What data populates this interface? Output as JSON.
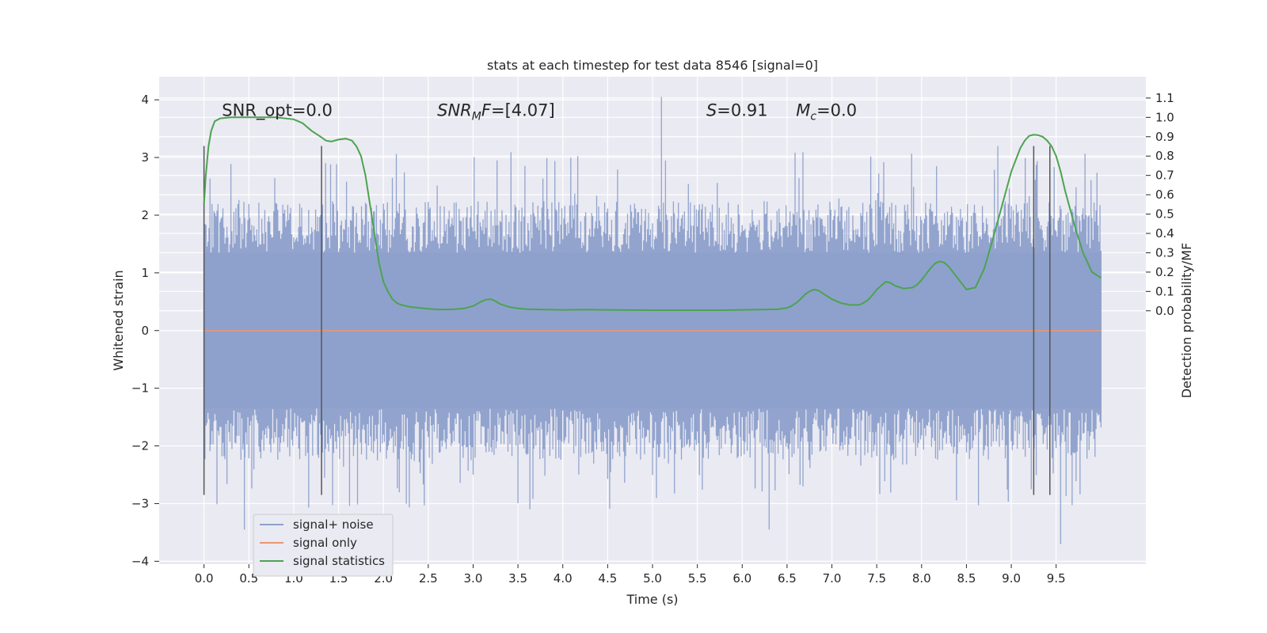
{
  "chart_data": {
    "type": "line",
    "title": "stats at each timestep for test data 8546 [signal=0]",
    "xlabel": "Time (s)",
    "ylabel": "Whitened strain",
    "y2label": "Detection probability/MF",
    "xlim": [
      -0.5,
      10.5
    ],
    "ylim": [
      -4.05,
      4.4
    ],
    "y2lim": [
      -1.31,
      1.21
    ],
    "x_ticks": [
      0.0,
      0.5,
      1.0,
      1.5,
      2.0,
      2.5,
      3.0,
      3.5,
      4.0,
      4.5,
      5.0,
      5.5,
      6.0,
      6.5,
      7.0,
      7.5,
      8.0,
      8.5,
      9.0,
      9.5
    ],
    "x_tick_labels": [
      "0.0",
      "0.5",
      "1.0",
      "1.5",
      "2.0",
      "2.5",
      "3.0",
      "3.5",
      "4.0",
      "4.5",
      "5.0",
      "5.5",
      "6.0",
      "6.5",
      "7.0",
      "7.5",
      "8.0",
      "8.5",
      "9.0",
      "9.5"
    ],
    "y_ticks": [
      4,
      3,
      2,
      1,
      0,
      -1,
      -2,
      -3,
      -4
    ],
    "y_tick_labels": [
      "4",
      "3",
      "2",
      "1",
      "0",
      "−1",
      "−2",
      "−3",
      "−4"
    ],
    "y2_ticks": [
      1.1,
      1.0,
      0.9,
      0.8,
      0.7,
      0.6,
      0.5,
      0.4,
      0.3,
      0.2,
      0.1,
      0.0
    ],
    "y2_tick_labels": [
      "1.1",
      "1.0",
      "0.9",
      "0.8",
      "0.7",
      "0.6",
      "0.5",
      "0.4",
      "0.3",
      "0.2",
      "0.1",
      "0.0"
    ],
    "grid": true,
    "legend_placement": "lower-left",
    "colors": {
      "noise": "#8da0cb",
      "signal": "#e8967a",
      "stats": "#4ca350",
      "markers": "#555555",
      "plot_bg": "#eaeaf2",
      "grid": "#ffffff"
    },
    "annotations": [
      {
        "id": "snr-opt",
        "text": "SNR_opt=0.0",
        "x": 0.2,
        "y2": 1.0
      },
      {
        "id": "snr-mf",
        "text": "SNR_MF=[4.07]",
        "x": 2.6,
        "y2": 1.0
      },
      {
        "id": "s-score",
        "text": "S=0.91",
        "x": 5.6,
        "y2": 1.0
      },
      {
        "id": "chirp-mass",
        "text": "M_c=0.0",
        "x": 6.6,
        "y2": 1.0
      }
    ],
    "marker_lines": [
      {
        "x": 0.0,
        "y_top": 3.2,
        "y_bottom": -2.85
      },
      {
        "x": 1.31,
        "y_top": 3.2,
        "y_bottom": -2.85
      },
      {
        "x": 9.25,
        "y_top": 3.2,
        "y_bottom": -2.85
      },
      {
        "x": 9.43,
        "y_top": 3.2,
        "y_bottom": -2.85
      }
    ],
    "series": [
      {
        "name": "signal+ noise",
        "axis": "left",
        "style": "dense-noise",
        "x_range": [
          0.0,
          10.0
        ],
        "envelope": {
          "band": 1.35,
          "p95": 2.2,
          "max": 4.05,
          "min": -3.7
        }
      },
      {
        "name": "signal only",
        "axis": "left",
        "x": [
          0.0,
          10.0
        ],
        "y": [
          0.0,
          0.0
        ]
      },
      {
        "name": "signal statistics",
        "axis": "right",
        "x": [
          0.0,
          0.02,
          0.05,
          0.08,
          0.12,
          0.18,
          0.3,
          0.5,
          0.8,
          1.0,
          1.1,
          1.2,
          1.3,
          1.36,
          1.42,
          1.5,
          1.58,
          1.65,
          1.7,
          1.75,
          1.8,
          1.85,
          1.9,
          1.95,
          2.0,
          2.05,
          2.1,
          2.15,
          2.2,
          2.3,
          2.4,
          2.5,
          2.6,
          2.7,
          2.8,
          2.9,
          3.0,
          3.1,
          3.15,
          3.2,
          3.25,
          3.3,
          3.4,
          3.5,
          3.6,
          3.8,
          4.0,
          4.3,
          4.6,
          5.0,
          5.5,
          5.8,
          6.0,
          6.2,
          6.4,
          6.5,
          6.55,
          6.6,
          6.65,
          6.7,
          6.75,
          6.8,
          6.85,
          6.9,
          7.0,
          7.1,
          7.2,
          7.3,
          7.35,
          7.4,
          7.45,
          7.5,
          7.55,
          7.6,
          7.65,
          7.7,
          7.8,
          7.9,
          7.95,
          8.0,
          8.05,
          8.1,
          8.15,
          8.2,
          8.25,
          8.3,
          8.4,
          8.5,
          8.6,
          8.7,
          8.8,
          8.9,
          9.0,
          9.1,
          9.15,
          9.2,
          9.25,
          9.3,
          9.35,
          9.4,
          9.45,
          9.5,
          9.55,
          9.6,
          9.7,
          9.8,
          9.9,
          10.0
        ],
        "y": [
          0.55,
          0.7,
          0.85,
          0.93,
          0.98,
          0.995,
          1.0,
          1.0,
          1.0,
          0.99,
          0.97,
          0.93,
          0.9,
          0.88,
          0.875,
          0.885,
          0.89,
          0.88,
          0.85,
          0.8,
          0.7,
          0.55,
          0.4,
          0.25,
          0.15,
          0.1,
          0.06,
          0.04,
          0.03,
          0.02,
          0.015,
          0.01,
          0.007,
          0.007,
          0.008,
          0.012,
          0.025,
          0.05,
          0.058,
          0.06,
          0.05,
          0.035,
          0.02,
          0.012,
          0.008,
          0.006,
          0.005,
          0.006,
          0.004,
          0.003,
          0.003,
          0.003,
          0.005,
          0.006,
          0.008,
          0.015,
          0.025,
          0.04,
          0.06,
          0.085,
          0.1,
          0.11,
          0.105,
          0.09,
          0.06,
          0.04,
          0.03,
          0.03,
          0.04,
          0.055,
          0.08,
          0.11,
          0.13,
          0.15,
          0.145,
          0.13,
          0.115,
          0.12,
          0.135,
          0.16,
          0.19,
          0.22,
          0.245,
          0.255,
          0.25,
          0.23,
          0.17,
          0.11,
          0.12,
          0.22,
          0.38,
          0.55,
          0.72,
          0.84,
          0.88,
          0.905,
          0.91,
          0.908,
          0.9,
          0.88,
          0.85,
          0.8,
          0.72,
          0.62,
          0.45,
          0.3,
          0.2,
          0.17
        ]
      }
    ]
  }
}
